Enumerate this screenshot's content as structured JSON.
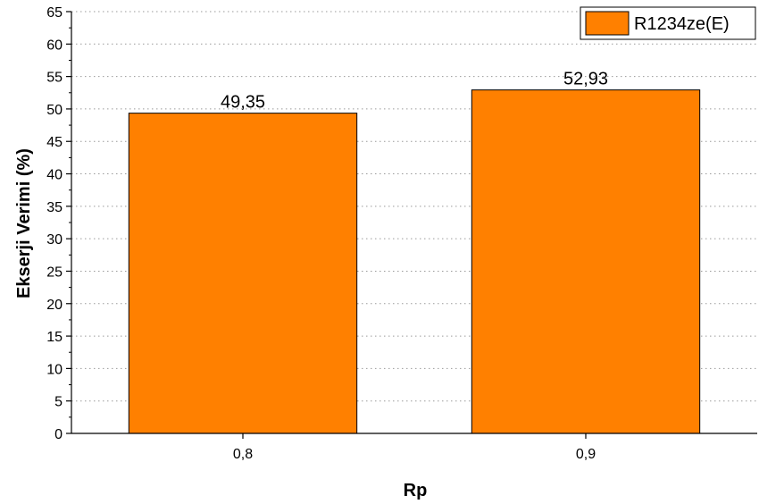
{
  "chart_data": {
    "type": "bar",
    "categories": [
      "0,8",
      "0,9"
    ],
    "series": [
      {
        "name": "R1234ze(E)",
        "values": [
          49.35,
          52.93
        ],
        "color": "#FF8000"
      }
    ],
    "data_labels": [
      "49,35",
      "52,93"
    ],
    "xlabel": "Rp",
    "ylabel": "Ekserji Verimi (%)",
    "ylim": [
      0,
      65
    ],
    "yticks": [
      0,
      5,
      10,
      15,
      20,
      25,
      30,
      35,
      40,
      45,
      50,
      55,
      60,
      65
    ],
    "grid": "horizontal-dotted",
    "legend_position": "top-right"
  }
}
